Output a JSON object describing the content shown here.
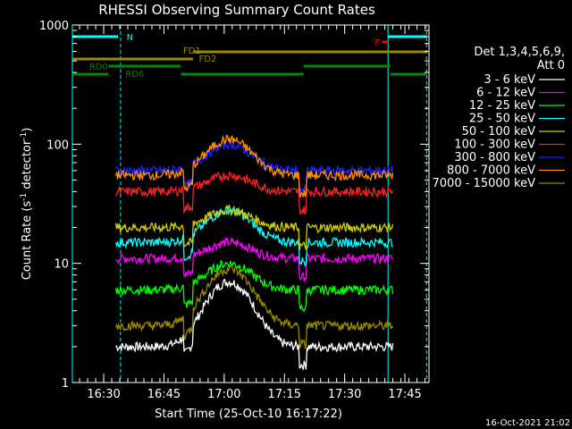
{
  "chart_data": {
    "type": "line",
    "title": "RHESSI Observing Summary Count Rates",
    "xlabel": "Start Time (25-Oct-10 16:17:22)",
    "ylabel_main": "Count Rate (s",
    "ylabel_sup1": "-1",
    "ylabel_mid": " detector",
    "ylabel_sup2": "-1",
    "ylabel_end": ")",
    "yscale": "log",
    "ylim": [
      1,
      1000
    ],
    "xlim_minutes": [
      16.37,
      17.85
    ],
    "x_tick_labels": [
      "16:30",
      "16:45",
      "17:00",
      "17:15",
      "17:30",
      "17:45"
    ],
    "x_tick_hours": [
      16.5,
      16.75,
      17.0,
      17.25,
      17.5,
      17.75
    ],
    "y_tick_labels": [
      "1",
      "10",
      "100",
      "1000"
    ],
    "y_tick_values": [
      1,
      10,
      100,
      1000
    ],
    "legend_title": "Det 1,3,4,5,6,9,",
    "legend_subtitle": "Att 0",
    "legend_placement": "right",
    "series": [
      {
        "name": "3 - 6 keV",
        "color": "#ffffff",
        "base": 2.0,
        "peak": 7
      },
      {
        "name": "6 - 12 keV",
        "color": "#ff00ff",
        "base": 11,
        "peak": 15
      },
      {
        "name": "12 - 25 keV",
        "color": "#00ff00",
        "base": 6,
        "peak": 10
      },
      {
        "name": "25 - 50 keV",
        "color": "#00ffff",
        "base": 15,
        "peak": 28
      },
      {
        "name": "50 - 100 keV",
        "color": "#cccc00",
        "base": 20,
        "peak": 28
      },
      {
        "name": "100 - 300 keV",
        "color": "#ff2020",
        "base": 40,
        "peak": 55
      },
      {
        "name": "300 - 800 keV",
        "color": "#2020ff",
        "base": 60,
        "peak": 100
      },
      {
        "name": "800 - 7000 keV",
        "color": "#ff9000",
        "base": 55,
        "peak": 110
      },
      {
        "name": "7000 - 15000 keV",
        "color": "#998800",
        "base": 3,
        "peak": 9
      }
    ],
    "annotations": {
      "N": "N",
      "F": "F",
      "FD1": "FD1",
      "FD2": "FD2",
      "RD0": "RD0",
      "RD6": "RD6"
    },
    "colors": {
      "night": "#00ffff",
      "flare": "#ff0000",
      "fd": "#998800",
      "rd": "#008800"
    }
  },
  "footer_timestamp": "16-Oct-2021 21:02"
}
